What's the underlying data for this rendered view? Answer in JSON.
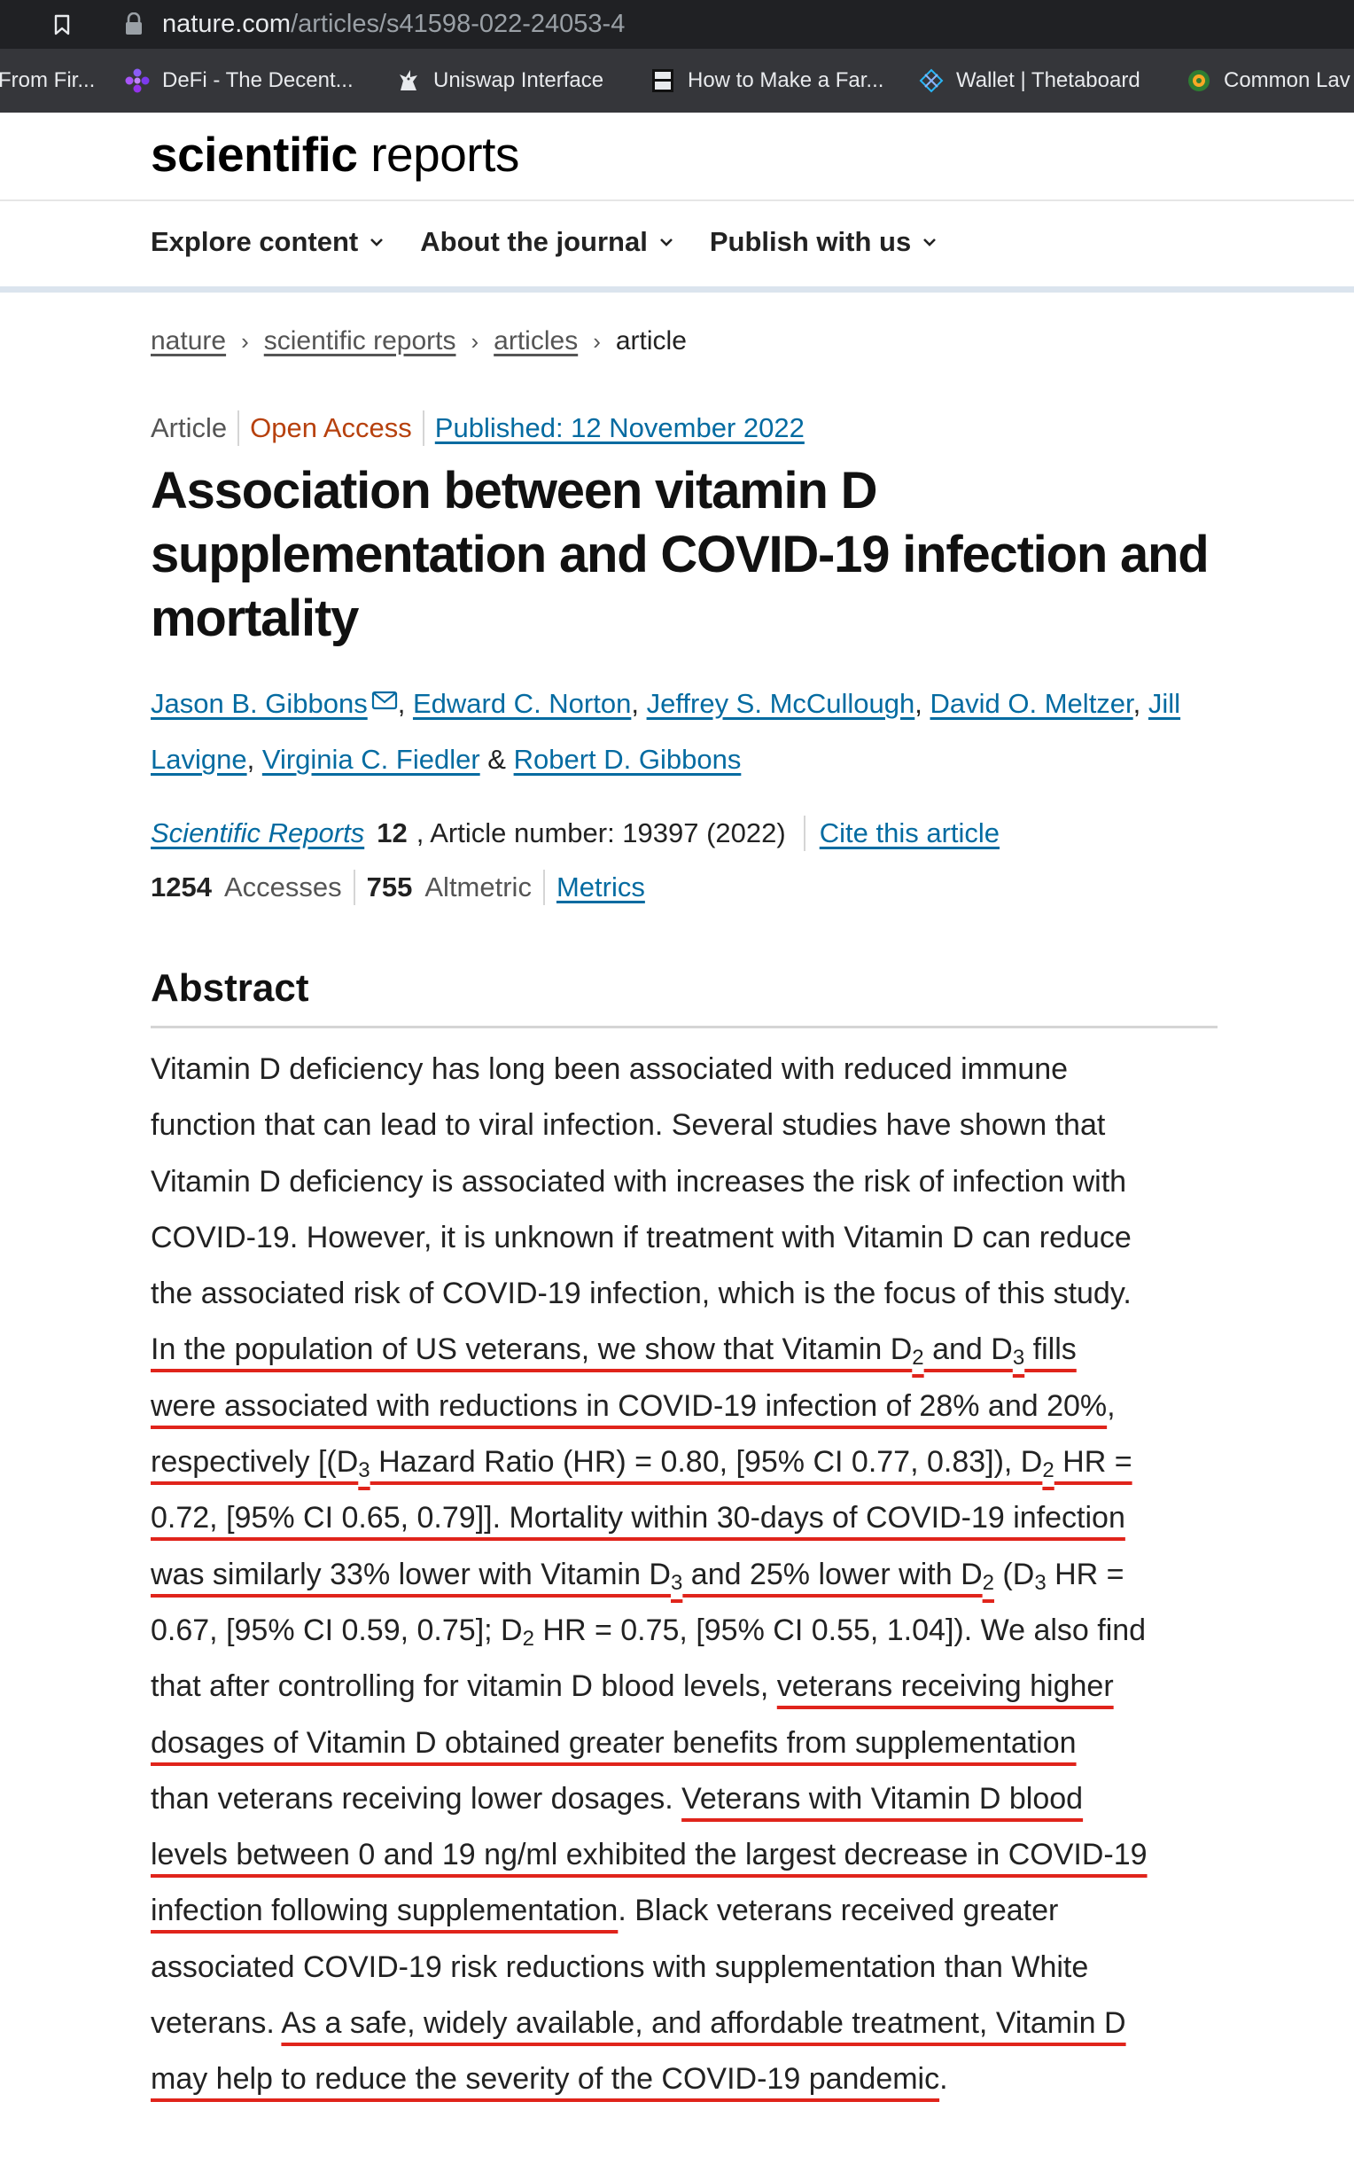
{
  "browser": {
    "url_host": "nature.com",
    "url_path": "/articles/s41598-022-24053-4",
    "bookmarks": [
      {
        "label": "From Fir...",
        "icon": "none"
      },
      {
        "label": "DeFi - The Decent...",
        "icon": "defi-icon"
      },
      {
        "label": "Uniswap Interface",
        "icon": "unicorn-icon"
      },
      {
        "label": "How to Make a Far...",
        "icon": "book-icon"
      },
      {
        "label": "Wallet | Thetaboard",
        "icon": "theta-icon"
      },
      {
        "label": "Common Lav",
        "icon": "globe-icon"
      }
    ]
  },
  "site": {
    "logo_bold": "scientific",
    "logo_light": " reports",
    "nav": [
      {
        "label": "Explore content"
      },
      {
        "label": "About the journal"
      },
      {
        "label": "Publish with us"
      }
    ]
  },
  "breadcrumb": [
    "nature",
    "scientific reports",
    "articles",
    "article"
  ],
  "article": {
    "type": "Article",
    "access": "Open Access",
    "published": "Published: 12 November 2022",
    "title": "Association between vitamin D supplementation and COVID-19 infection and mortality",
    "authors": [
      "Jason B. Gibbons",
      "Edward C. Norton",
      "Jeffrey S. McCullough",
      "David O. Meltzer",
      "Jill",
      "Lavigne",
      "Virginia C. Fiedler",
      "Robert D. Gibbons"
    ],
    "author_seps": [
      ",",
      ",",
      ",",
      ",",
      ",",
      "&"
    ],
    "journal": "Scientific Reports",
    "volume": "12",
    "article_number": ", Article number: 19397 (2022)",
    "cite_link": "Cite this article",
    "accesses_count": "1254",
    "accesses_label": "Accesses",
    "altmetric_count": "755",
    "altmetric_label": "Altmetric",
    "metrics_link": "Metrics"
  },
  "abstract": {
    "heading": "Abstract",
    "lines": [
      [
        {
          "t": "Vitamin D deficiency has long been associated with reduced immune"
        }
      ],
      [
        {
          "t": "function that can lead to viral infection. Several studies have shown that"
        }
      ],
      [
        {
          "t": "Vitamin D deficiency is associated with increases the risk of infection with"
        }
      ],
      [
        {
          "t": "COVID-19. However, it is unknown if treatment with Vitamin D can reduce"
        }
      ],
      [
        {
          "t": "the associated risk of COVID-19 infection, which is the focus of this study."
        }
      ],
      [
        {
          "t": "In the population of US veterans, we show that Vitamin D",
          "h": true
        },
        {
          "t": "2",
          "h": true,
          "sub": true
        },
        {
          "t": " and D",
          "h": true
        },
        {
          "t": "3",
          "h": true,
          "sub": true
        },
        {
          "t": " fills",
          "h": true
        }
      ],
      [
        {
          "t": "were associated with reductions in COVID-19 infection of 28% and 20%",
          "h": true
        },
        {
          "t": ","
        }
      ],
      [
        {
          "t": "respectively [(D",
          "h": true
        },
        {
          "t": "3",
          "h": true,
          "sub": true
        },
        {
          "t": " Hazard Ratio (HR) = 0.80, [95% CI 0.77, 0.83]), D",
          "h": true
        },
        {
          "t": "2",
          "h": true,
          "sub": true
        },
        {
          "t": " HR =",
          "h": true
        }
      ],
      [
        {
          "t": "0.72, [95% CI 0.65, 0.79]]. Mortality within 30-days of COVID-19 infection",
          "h": true
        }
      ],
      [
        {
          "t": "was similarly 33% lower with Vitamin D",
          "h": true
        },
        {
          "t": "3",
          "h": true,
          "sub": true
        },
        {
          "t": " and 25% lower with D",
          "h": true
        },
        {
          "t": "2",
          "h": true,
          "sub": true
        },
        {
          "t": " (D"
        },
        {
          "t": "3",
          "sub": true
        },
        {
          "t": " HR ="
        }
      ],
      [
        {
          "t": "0.67, [95% CI 0.59, 0.75]; D"
        },
        {
          "t": "2",
          "sub": true
        },
        {
          "t": " HR = 0.75, [95% CI 0.55, 1.04]). We also find"
        }
      ],
      [
        {
          "t": "that after controlling for vitamin D blood levels, "
        },
        {
          "t": "veterans receiving higher",
          "h": true
        }
      ],
      [
        {
          "t": "dosages of Vitamin D obtained greater benefits from supplementation",
          "h": true
        }
      ],
      [
        {
          "t": "than veterans receiving lower dosages. "
        },
        {
          "t": "Veterans with Vitamin D blood",
          "h": true
        }
      ],
      [
        {
          "t": "levels between 0 and 19 ng/ml exhibited the largest decrease in COVID-19",
          "h": true
        }
      ],
      [
        {
          "t": "infection following supplementation",
          "h": true
        },
        {
          "t": ". Black veterans received greater"
        }
      ],
      [
        {
          "t": "associated COVID-19 risk reductions with supplementation than White"
        }
      ],
      [
        {
          "t": "veterans. "
        },
        {
          "t": "As a safe, widely available, and affordable treatment, Vitamin D",
          "h": true
        }
      ],
      [
        {
          "t": "may help to reduce the severity of the COVID-19 pandemic",
          "h": true
        },
        {
          "t": "."
        }
      ]
    ]
  },
  "colors": {
    "link": "#046ba1",
    "open_access": "#b7410e",
    "highlight_underline": "#e0241b",
    "browser_bar": "#202124",
    "bookmarks_bar": "#35363a"
  }
}
